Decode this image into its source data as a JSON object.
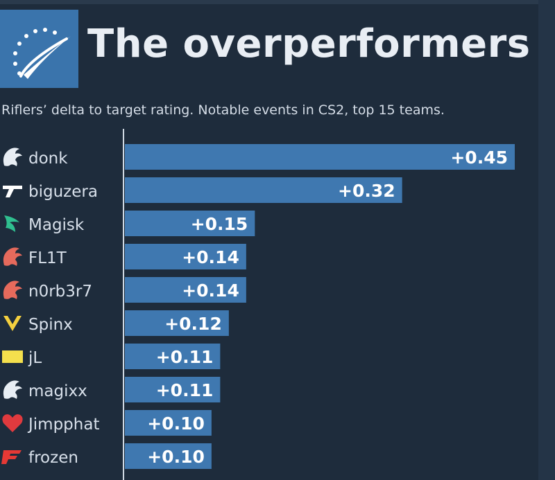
{
  "header": {
    "title": "The overperformers",
    "subtitle": "Riflers’ delta to target rating. Notable events in CS2, top 15 teams.",
    "logo_icon": "gauge-icon"
  },
  "colors": {
    "background": "#1e2c3c",
    "bar": "#3f78b0",
    "bar_text": "#ffffff",
    "label_text": "#d8e0ea"
  },
  "chart_data": {
    "type": "bar",
    "orientation": "horizontal",
    "title": "The overperformers",
    "subtitle": "Riflers’ delta to target rating. Notable events in CS2, top 15 teams.",
    "categories": [
      "donk",
      "biguzera",
      "Magisk",
      "FL1T",
      "n0rb3r7",
      "Spinx",
      "jL",
      "magixx",
      "Jimpphat",
      "frozen"
    ],
    "values": [
      0.45,
      0.32,
      0.15,
      0.14,
      0.14,
      0.12,
      0.11,
      0.11,
      0.1,
      0.1
    ],
    "value_labels": [
      "+0.45",
      "+0.32",
      "+0.15",
      "+0.14",
      "+0.14",
      "+0.12",
      "+0.11",
      "+0.11",
      "+0.10",
      "+0.10"
    ],
    "team_icons": [
      "team-spirit-icon",
      "pain-gaming-icon",
      "falcons-icon",
      "virtus-pro-icon",
      "virtus-pro-icon",
      "vitality-icon",
      "natus-vincere-icon",
      "team-spirit-icon",
      "mouz-icon",
      "faze-icon"
    ],
    "team_colors": [
      "#e8eef4",
      "#ffffff",
      "#2fbf8f",
      "#e66a5c",
      "#e66a5c",
      "#f4d03f",
      "#f4e04d",
      "#e8eef4",
      "#e03a3e",
      "#e53935"
    ],
    "xlim": [
      0,
      0.45
    ],
    "grid": false,
    "legend": "none"
  }
}
